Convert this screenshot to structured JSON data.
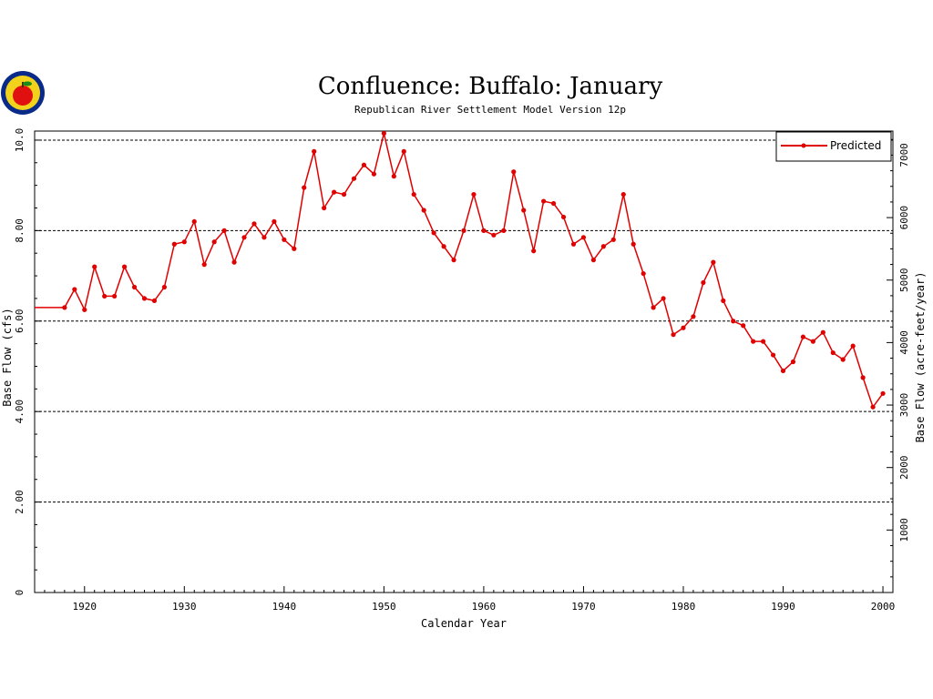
{
  "chart_data": {
    "type": "line",
    "title": "Confluence: Buffalo: January",
    "subtitle": "Republican River Settlement Model Version 12p",
    "xlabel": "Calendar Year",
    "ylabel": "Base Flow (cfs)",
    "y2label": "Base Flow (acre-feet/year)",
    "xlim": [
      1915,
      2001
    ],
    "ylim": [
      0,
      10.2
    ],
    "y2lim": [
      0,
      7385
    ],
    "grid": true,
    "legend_placement": "top-right",
    "x_ticks": [
      1920,
      1930,
      1940,
      1950,
      1960,
      1970,
      1980,
      1990,
      2000
    ],
    "y_ticks": [
      0,
      2,
      4,
      6,
      8,
      10
    ],
    "y_tick_labels": [
      "0",
      "2.00",
      "4.00",
      "6.00",
      "8.00",
      "10.0"
    ],
    "y2_ticks": [
      1000,
      2000,
      3000,
      4000,
      5000,
      6000,
      7000
    ],
    "y2_tick_labels": [
      "1000",
      "2000",
      "3000",
      "4000",
      "5000",
      "6000",
      "7000"
    ],
    "colors": {
      "series": "#e00000",
      "grid": "#000000",
      "axis": "#000000"
    },
    "series": [
      {
        "name": "Predicted",
        "x": [
          1915,
          1918,
          1919,
          1920,
          1921,
          1922,
          1923,
          1924,
          1925,
          1926,
          1927,
          1928,
          1929,
          1930,
          1931,
          1932,
          1933,
          1934,
          1935,
          1936,
          1937,
          1938,
          1939,
          1940,
          1941,
          1942,
          1943,
          1944,
          1945,
          1946,
          1947,
          1948,
          1949,
          1950,
          1951,
          1952,
          1953,
          1954,
          1955,
          1956,
          1957,
          1958,
          1959,
          1960,
          1961,
          1962,
          1963,
          1964,
          1965,
          1966,
          1967,
          1968,
          1969,
          1970,
          1971,
          1972,
          1973,
          1974,
          1975,
          1976,
          1977,
          1978,
          1979,
          1980,
          1981,
          1982,
          1983,
          1984,
          1985,
          1986,
          1987,
          1988,
          1989,
          1990,
          1991,
          1992,
          1993,
          1994,
          1995,
          1996,
          1997,
          1998,
          1999,
          2000
        ],
        "values": [
          6.3,
          6.3,
          6.7,
          6.25,
          7.2,
          6.55,
          6.55,
          7.2,
          6.75,
          6.5,
          6.45,
          6.75,
          7.7,
          7.75,
          8.2,
          7.25,
          7.75,
          8.0,
          7.3,
          7.85,
          8.15,
          7.85,
          8.2,
          7.8,
          7.6,
          8.95,
          9.75,
          8.5,
          8.85,
          8.8,
          9.15,
          9.45,
          9.25,
          10.15,
          9.2,
          9.75,
          8.8,
          8.45,
          7.95,
          7.65,
          7.35,
          8.0,
          8.8,
          8.0,
          7.9,
          8.0,
          9.3,
          8.45,
          7.55,
          8.65,
          8.6,
          8.3,
          7.7,
          7.85,
          7.35,
          7.65,
          7.8,
          8.8,
          7.7,
          7.05,
          6.3,
          6.5,
          5.7,
          5.85,
          6.1,
          6.85,
          7.3,
          6.45,
          6.0,
          5.9,
          5.55,
          5.55,
          5.25,
          4.9,
          5.1,
          5.65,
          5.55,
          5.75,
          5.3,
          5.15,
          5.45,
          4.75,
          4.1,
          4.4
        ]
      }
    ]
  }
}
